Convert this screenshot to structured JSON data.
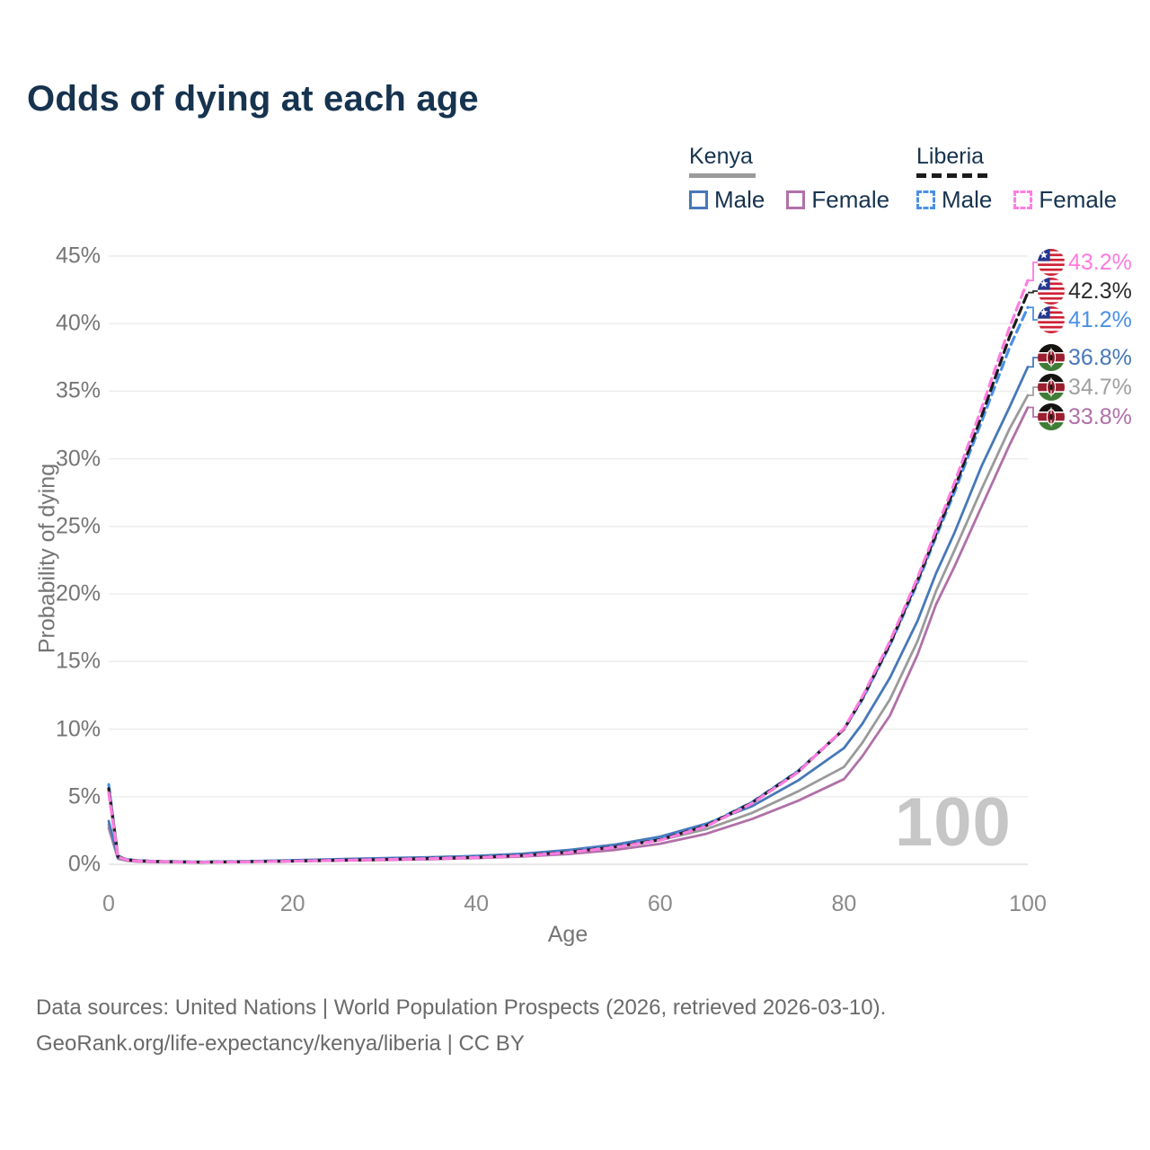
{
  "title": "Odds of dying at each age",
  "watermark": "100",
  "legend": {
    "kenya": {
      "label": "Kenya",
      "male": "Male",
      "female": "Female",
      "line_color": "#9a9a9a"
    },
    "liberia": {
      "label": "Liberia",
      "male": "Male",
      "female": "Female",
      "line_color": "#1a1a1a"
    }
  },
  "axes": {
    "x": {
      "label": "Age",
      "ticks": [
        0,
        20,
        40,
        60,
        80,
        100
      ],
      "min": 0,
      "max": 100
    },
    "y": {
      "label": "Probability of dying",
      "ticks": [
        "0%",
        "5%",
        "10%",
        "15%",
        "20%",
        "25%",
        "30%",
        "35%",
        "40%",
        "45%"
      ],
      "min": 0,
      "max": 45
    }
  },
  "end_labels": [
    {
      "text": "43.2%",
      "value": 43.2,
      "flag": "liberia",
      "color": "#ff7ae0",
      "series": "Liberia Female"
    },
    {
      "text": "42.3%",
      "value": 42.3,
      "flag": "liberia",
      "color": "#2b2b2b",
      "series": "Liberia"
    },
    {
      "text": "41.2%",
      "value": 41.2,
      "flag": "liberia",
      "color": "#4a90e8",
      "series": "Liberia Male"
    },
    {
      "text": "36.8%",
      "value": 36.8,
      "flag": "kenya",
      "color": "#4778b8",
      "series": "Kenya Male"
    },
    {
      "text": "34.7%",
      "value": 34.7,
      "flag": "kenya",
      "color": "#a0a0a0",
      "series": "Kenya"
    },
    {
      "text": "33.8%",
      "value": 33.8,
      "flag": "kenya",
      "color": "#b070a8",
      "series": "Kenya Female"
    }
  ],
  "footer": {
    "line1": "Data sources: United Nations | World Population Prospects (2026, retrieved 2026-03-10).",
    "line2": "GeoRank.org/life-expectancy/kenya/liberia | CC BY"
  },
  "chart_data": {
    "type": "line",
    "title": "Odds of dying at each age",
    "xlabel": "Age",
    "ylabel": "Probability of dying",
    "xlim": [
      0,
      100
    ],
    "ylim": [
      0,
      45
    ],
    "unit": "percent",
    "grid": "horizontal",
    "legend_position": "top-right",
    "series": [
      {
        "name": "Kenya Female",
        "country": "Kenya",
        "group": "female",
        "style": "solid",
        "color": "#b070a8",
        "final_label": "33.8%",
        "points": [
          [
            0,
            2.7
          ],
          [
            1,
            0.42
          ],
          [
            2,
            0.26
          ],
          [
            3,
            0.2
          ],
          [
            5,
            0.16
          ],
          [
            10,
            0.14
          ],
          [
            15,
            0.17
          ],
          [
            20,
            0.22
          ],
          [
            25,
            0.27
          ],
          [
            30,
            0.32
          ],
          [
            35,
            0.38
          ],
          [
            40,
            0.46
          ],
          [
            45,
            0.57
          ],
          [
            50,
            0.76
          ],
          [
            55,
            1.06
          ],
          [
            60,
            1.52
          ],
          [
            65,
            2.25
          ],
          [
            70,
            3.35
          ],
          [
            75,
            4.7
          ],
          [
            80,
            6.3
          ],
          [
            82,
            8.0
          ],
          [
            85,
            11.0
          ],
          [
            88,
            15.5
          ],
          [
            90,
            19.2
          ],
          [
            92,
            22.0
          ],
          [
            95,
            26.5
          ],
          [
            98,
            31.0
          ],
          [
            100,
            33.8
          ]
        ]
      },
      {
        "name": "Kenya",
        "country": "Kenya",
        "group": "total",
        "style": "solid",
        "color": "#9a9a9a",
        "final_label": "34.7%",
        "points": [
          [
            0,
            2.95
          ],
          [
            1,
            0.46
          ],
          [
            2,
            0.29
          ],
          [
            3,
            0.23
          ],
          [
            5,
            0.18
          ],
          [
            10,
            0.16
          ],
          [
            15,
            0.2
          ],
          [
            20,
            0.26
          ],
          [
            25,
            0.33
          ],
          [
            30,
            0.39
          ],
          [
            35,
            0.45
          ],
          [
            40,
            0.54
          ],
          [
            45,
            0.67
          ],
          [
            50,
            0.9
          ],
          [
            55,
            1.25
          ],
          [
            60,
            1.78
          ],
          [
            65,
            2.6
          ],
          [
            70,
            3.8
          ],
          [
            75,
            5.4
          ],
          [
            80,
            7.2
          ],
          [
            82,
            9.0
          ],
          [
            85,
            12.2
          ],
          [
            88,
            16.5
          ],
          [
            90,
            20.2
          ],
          [
            92,
            23.2
          ],
          [
            95,
            27.8
          ],
          [
            98,
            32.2
          ],
          [
            100,
            34.7
          ]
        ]
      },
      {
        "name": "Kenya Male",
        "country": "Kenya",
        "group": "male",
        "style": "solid",
        "color": "#4778b8",
        "final_label": "36.8%",
        "points": [
          [
            0,
            3.2
          ],
          [
            1,
            0.5
          ],
          [
            2,
            0.32
          ],
          [
            3,
            0.26
          ],
          [
            5,
            0.2
          ],
          [
            10,
            0.18
          ],
          [
            15,
            0.22
          ],
          [
            20,
            0.3
          ],
          [
            25,
            0.38
          ],
          [
            30,
            0.45
          ],
          [
            35,
            0.52
          ],
          [
            40,
            0.62
          ],
          [
            45,
            0.78
          ],
          [
            50,
            1.05
          ],
          [
            55,
            1.45
          ],
          [
            60,
            2.05
          ],
          [
            65,
            3.0
          ],
          [
            70,
            4.3
          ],
          [
            75,
            6.2
          ],
          [
            80,
            8.6
          ],
          [
            82,
            10.4
          ],
          [
            85,
            13.8
          ],
          [
            88,
            18.0
          ],
          [
            90,
            21.5
          ],
          [
            92,
            24.5
          ],
          [
            95,
            29.5
          ],
          [
            98,
            33.8
          ],
          [
            100,
            36.8
          ]
        ]
      },
      {
        "name": "Liberia Male",
        "country": "Liberia",
        "group": "male",
        "style": "dashed",
        "color": "#4a90e8",
        "final_label": "41.2%",
        "points": [
          [
            0,
            5.9
          ],
          [
            1,
            0.62
          ],
          [
            2,
            0.36
          ],
          [
            3,
            0.28
          ],
          [
            5,
            0.22
          ],
          [
            10,
            0.17
          ],
          [
            15,
            0.2
          ],
          [
            20,
            0.25
          ],
          [
            25,
            0.31
          ],
          [
            30,
            0.37
          ],
          [
            35,
            0.44
          ],
          [
            40,
            0.53
          ],
          [
            45,
            0.68
          ],
          [
            50,
            0.92
          ],
          [
            55,
            1.32
          ],
          [
            60,
            1.88
          ],
          [
            65,
            2.9
          ],
          [
            70,
            4.6
          ],
          [
            75,
            6.9
          ],
          [
            80,
            10.0
          ],
          [
            82,
            12.2
          ],
          [
            85,
            16.2
          ],
          [
            88,
            20.8
          ],
          [
            90,
            24.2
          ],
          [
            92,
            27.5
          ],
          [
            95,
            32.8
          ],
          [
            98,
            38.2
          ],
          [
            100,
            41.2
          ]
        ]
      },
      {
        "name": "Liberia",
        "country": "Liberia",
        "group": "total",
        "style": "dashed",
        "color": "#1c1c1c",
        "final_label": "42.3%",
        "points": [
          [
            0,
            5.6
          ],
          [
            1,
            0.58
          ],
          [
            2,
            0.34
          ],
          [
            3,
            0.27
          ],
          [
            5,
            0.21
          ],
          [
            10,
            0.16
          ],
          [
            15,
            0.19
          ],
          [
            20,
            0.24
          ],
          [
            25,
            0.3
          ],
          [
            30,
            0.36
          ],
          [
            35,
            0.43
          ],
          [
            40,
            0.51
          ],
          [
            45,
            0.66
          ],
          [
            50,
            0.9
          ],
          [
            55,
            1.28
          ],
          [
            60,
            1.82
          ],
          [
            65,
            2.85
          ],
          [
            70,
            4.55
          ],
          [
            75,
            6.85
          ],
          [
            80,
            10.0
          ],
          [
            82,
            12.3
          ],
          [
            85,
            16.3
          ],
          [
            88,
            21.0
          ],
          [
            90,
            24.4
          ],
          [
            92,
            27.8
          ],
          [
            95,
            33.2
          ],
          [
            98,
            39.0
          ],
          [
            100,
            42.3
          ]
        ]
      },
      {
        "name": "Liberia Female",
        "country": "Liberia",
        "group": "female",
        "style": "dashed",
        "color": "#ff7ce0",
        "final_label": "43.2%",
        "points": [
          [
            0,
            5.3
          ],
          [
            1,
            0.55
          ],
          [
            2,
            0.32
          ],
          [
            3,
            0.25
          ],
          [
            5,
            0.2
          ],
          [
            10,
            0.15
          ],
          [
            15,
            0.18
          ],
          [
            20,
            0.23
          ],
          [
            25,
            0.29
          ],
          [
            30,
            0.35
          ],
          [
            35,
            0.42
          ],
          [
            40,
            0.5
          ],
          [
            45,
            0.63
          ],
          [
            50,
            0.87
          ],
          [
            55,
            1.25
          ],
          [
            60,
            1.78
          ],
          [
            65,
            2.8
          ],
          [
            70,
            4.5
          ],
          [
            75,
            6.8
          ],
          [
            80,
            10.05
          ],
          [
            82,
            12.4
          ],
          [
            85,
            16.5
          ],
          [
            88,
            21.2
          ],
          [
            90,
            24.7
          ],
          [
            92,
            28.2
          ],
          [
            95,
            33.8
          ],
          [
            98,
            39.7
          ],
          [
            100,
            43.2
          ]
        ]
      }
    ]
  }
}
